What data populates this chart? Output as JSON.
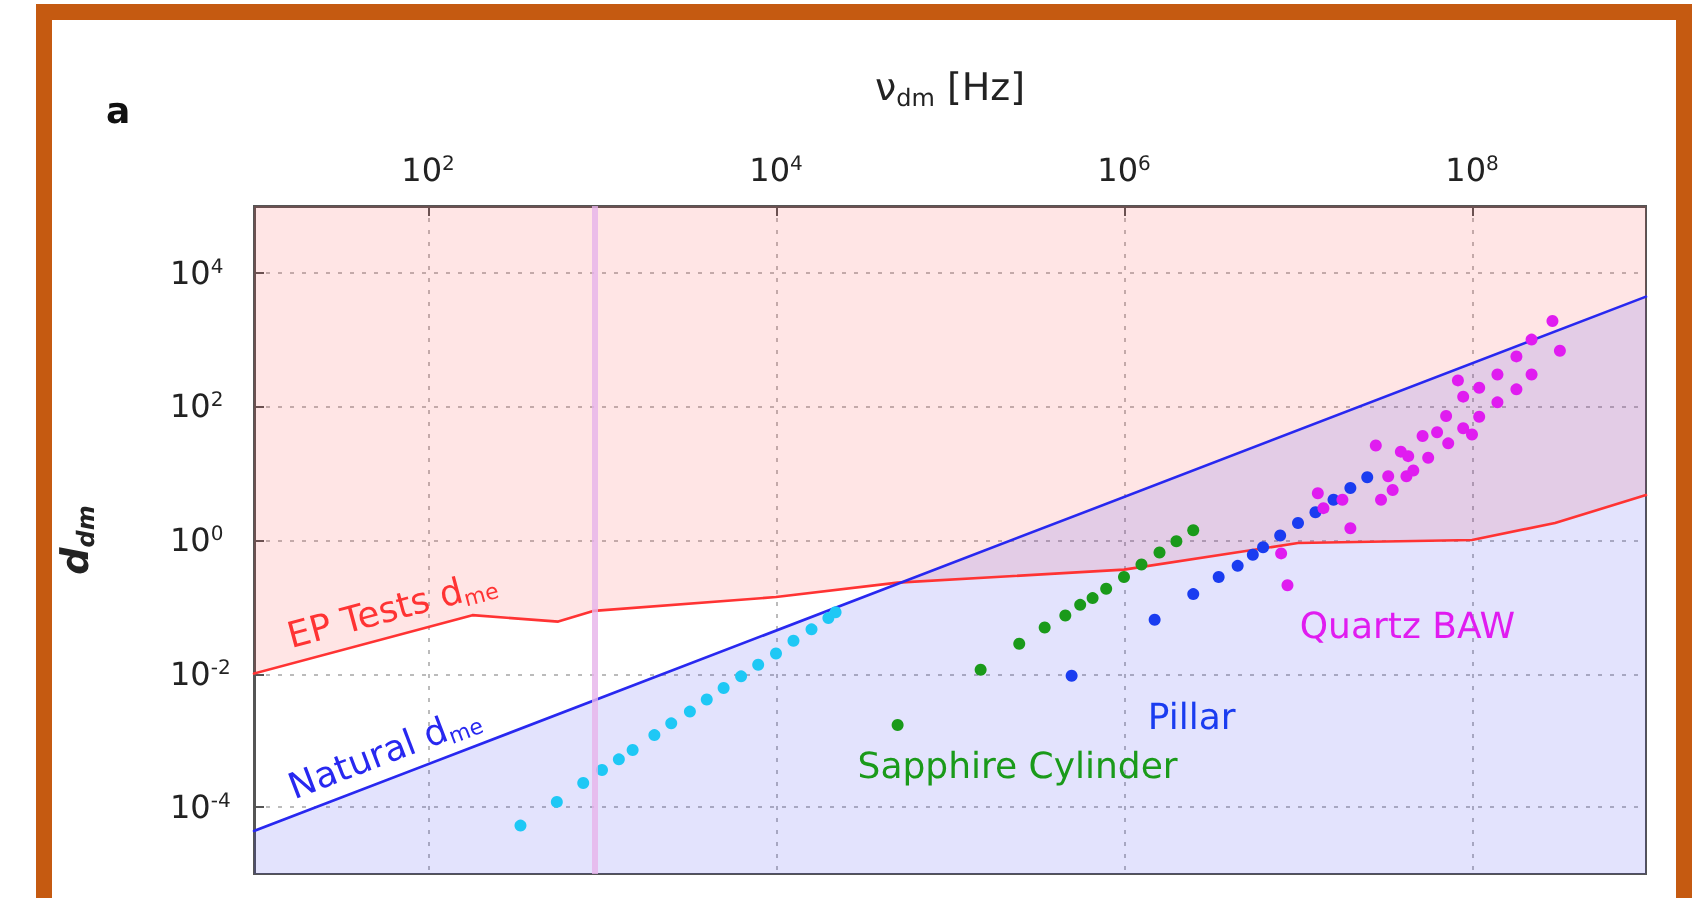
{
  "chart_data": {
    "type": "scatter",
    "title": "a",
    "xlabel": "ν$_{dm}$ [Hz]",
    "ylabel": "d$_{dm}$",
    "log": "xy",
    "grid": true,
    "marker": "circle",
    "xlim": [
      10,
      1000000000
    ],
    "xticks": [
      {
        "value": 100,
        "label": "10$^{2}$"
      },
      {
        "value": 10000,
        "label": "10$^{4}$"
      },
      {
        "value": 1000000,
        "label": "10$^{6}$"
      },
      {
        "value": 100000000,
        "label": "10$^{8}$"
      }
    ],
    "ylim": [
      1e-05,
      100000
    ],
    "yticks": [
      {
        "value": 0.0001,
        "label": "10$^{-4}$"
      },
      {
        "value": 0.01,
        "label": "10$^{-2}$"
      },
      {
        "value": 1,
        "label": "10$^{0}$"
      },
      {
        "value": 100,
        "label": "10$^{2}$"
      },
      {
        "value": 10000,
        "label": "10$^{4}$"
      }
    ],
    "ref_lines": [
      {
        "axis": "x",
        "value": 900,
        "color": "#e6b3ea"
      }
    ],
    "series": [
      {
        "type": "line",
        "marker": "none",
        "line_style": "solid",
        "name": "EP Tests d$_{me}$",
        "color": "#ff3333",
        "x": [
          10,
          180,
          560,
          900,
          10000,
          50000,
          1000000,
          10000000,
          100000000,
          300000000,
          1000000000
        ],
        "values": [
          0.01,
          0.075,
          0.06,
          0.087,
          0.14,
          0.23,
          0.36,
          0.9,
          1.0,
          1.8,
          4.7
        ],
        "lower": [
          0.01,
          0.075,
          0.06,
          0.087,
          0.14,
          0.23,
          0.36,
          0.9,
          1.0,
          1.8,
          4.7
        ],
        "upper": [
          100000,
          100000,
          100000,
          100000,
          100000,
          100000,
          100000,
          100000,
          100000,
          100000,
          100000
        ]
      },
      {
        "type": "area",
        "marker": "none",
        "line_style": "solid",
        "name": "Natural d$_{me}$",
        "color": "#2828f0",
        "x": [
          10,
          1000000000
        ],
        "values": [
          4.4e-05,
          4400
        ]
      },
      {
        "color": "#1ec8f5",
        "x": [
          340,
          550,
          780,
          1000,
          1250,
          1500,
          2000,
          2500,
          3200,
          4000,
          5000,
          6300,
          7900,
          10000,
          12600,
          16000,
          20000,
          22000
        ],
        "values": [
          5.3e-05,
          0.00012,
          0.00023,
          0.00036,
          0.00052,
          0.00072,
          0.0012,
          0.0018,
          0.0027,
          0.0041,
          0.0061,
          0.0091,
          0.0136,
          0.02,
          0.031,
          0.046,
          0.068,
          0.083
        ]
      },
      {
        "name": "Sapphire Cylinder",
        "color": "#1a9a1a",
        "x": [
          50000,
          150000,
          250000,
          350000,
          460000,
          560000,
          660000,
          790000,
          1000000,
          1260000,
          1600000,
          2000000,
          2500000
        ],
        "values": [
          0.0017,
          0.0114,
          0.028,
          0.049,
          0.074,
          0.107,
          0.135,
          0.186,
          0.28,
          0.43,
          0.65,
          0.96,
          1.4
        ]
      },
      {
        "name": "Pillar",
        "color": "#1a3cf0",
        "x": [
          500000,
          1500000,
          2500000,
          3500000,
          4500000,
          5500000,
          6300000,
          7900000,
          10000000,
          12600000,
          16000000,
          20000000,
          25000000
        ],
        "values": [
          0.0093,
          0.064,
          0.155,
          0.28,
          0.41,
          0.6,
          0.78,
          1.17,
          1.8,
          2.6,
          4.0,
          6.0,
          8.7
        ]
      },
      {
        "name": "Quartz BAW",
        "color": "#e01cf0",
        "x": [
          8700000,
          8000000,
          13000000,
          14000000,
          18000000,
          20000000,
          28000000,
          30000000,
          33000000,
          35000000,
          39000000,
          42000000,
          43000000,
          46000000,
          52000000,
          56000000,
          63000000,
          71000000,
          73000000,
          83000000,
          89000000,
          100000000,
          110000000,
          140000000,
          180000000,
          220000000,
          290000000,
          89000000,
          110000000,
          140000000,
          180000000,
          220000000,
          320000000
        ],
        "values": [
          0.21,
          0.63,
          5,
          3,
          4,
          1.5,
          26,
          4,
          9,
          5.6,
          21,
          9,
          18,
          11,
          36,
          17,
          41,
          72,
          28,
          245,
          140,
          38,
          190,
          300,
          560,
          1000,
          1900,
          47,
          70,
          115,
          180,
          300,
          680
        ]
      }
    ]
  }
}
